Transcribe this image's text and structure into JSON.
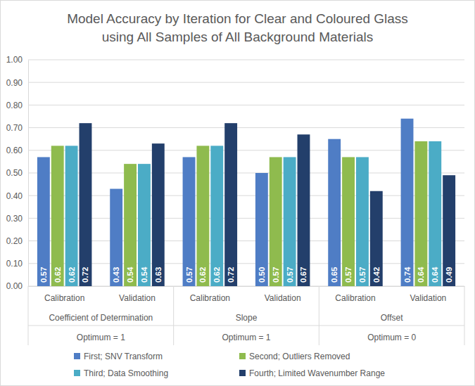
{
  "chart_data": {
    "type": "bar",
    "title": [
      "Model Accuracy by Iteration for Clear and Coloured Glass",
      "using All Samples of All Background Materials"
    ],
    "categories": [
      "Calibration",
      "Validation",
      "Calibration",
      "Validation",
      "Calibration",
      "Validation"
    ],
    "category_groups": [
      {
        "label": "Coefficient of Determination",
        "note": "Optimum = 1"
      },
      {
        "label": "Slope",
        "note": "Optimum = 1"
      },
      {
        "label": "Offset",
        "note": "Optimum = 0"
      }
    ],
    "series": [
      {
        "name": "First; SNV Transform",
        "color": "#4f7dc5",
        "values": [
          0.57,
          0.43,
          0.57,
          0.5,
          0.65,
          0.74
        ],
        "value_labels": [
          "0.57",
          "0.43",
          "0.57",
          "0.50",
          "0.65",
          "0.74"
        ]
      },
      {
        "name": "Second; Outliers Removed",
        "color": "#8fbb4e",
        "values": [
          0.62,
          0.54,
          0.62,
          0.57,
          0.57,
          0.64
        ],
        "value_labels": [
          "0.62",
          "0.54",
          "0.62",
          "0.57",
          "0.57",
          "0.64"
        ]
      },
      {
        "name": "Third; Data Smoothing",
        "color": "#4bacc6",
        "values": [
          0.62,
          0.54,
          0.62,
          0.57,
          0.57,
          0.64
        ],
        "value_labels": [
          "0.62",
          "0.54",
          "0.62",
          "0.57",
          "0.57",
          "0.64"
        ]
      },
      {
        "name": "Fourth; Limited Wavenumber Range",
        "color": "#233f6b",
        "values": [
          0.72,
          0.63,
          0.72,
          0.67,
          0.42,
          0.49
        ],
        "value_labels": [
          "0.72",
          "0.63",
          "0.72",
          "0.67",
          "0.42",
          "0.49"
        ]
      }
    ],
    "ylim": [
      0,
      1
    ],
    "yticks": [
      {
        "value": 0,
        "label": "0.00"
      },
      {
        "value": 0.1,
        "label": "0.10"
      },
      {
        "value": 0.2,
        "label": "0.20"
      },
      {
        "value": 0.3,
        "label": "0.30"
      },
      {
        "value": 0.4,
        "label": "0.40"
      },
      {
        "value": 0.5,
        "label": "0.50"
      },
      {
        "value": 0.6,
        "label": "0.60"
      },
      {
        "value": 0.7,
        "label": "0.70"
      },
      {
        "value": 0.8,
        "label": "0.80"
      },
      {
        "value": 0.9,
        "label": "0.90"
      },
      {
        "value": 1,
        "label": "1.00"
      }
    ],
    "grid": true,
    "legend": "bottom",
    "data_labels": true
  }
}
